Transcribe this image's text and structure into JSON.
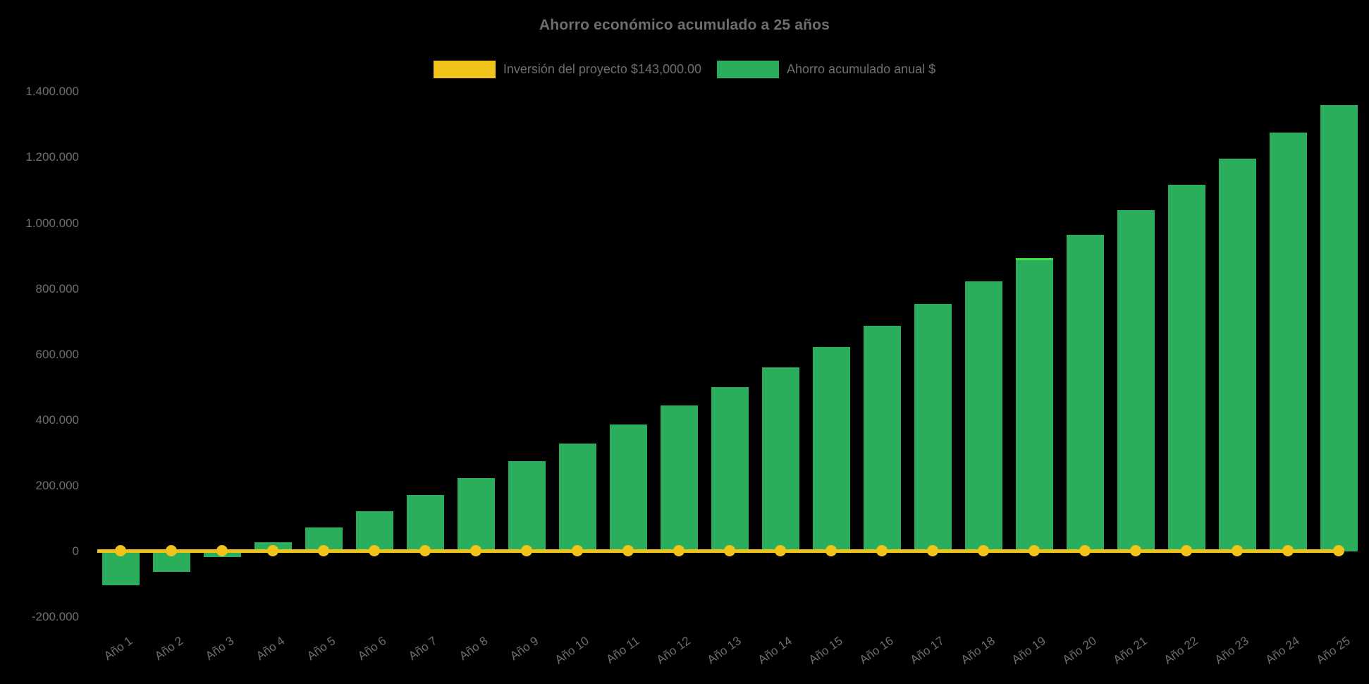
{
  "title": "Ahorro económico acumulado a 25 años",
  "colors": {
    "background": "#000000",
    "bar_green": "#2BAE5C",
    "line_yellow": "#F1C319",
    "text_gray": "#6E6E6E",
    "highlight_green": "#3FE03F"
  },
  "legend": {
    "items": [
      {
        "label": "Inversión del proyecto $143,000.00",
        "color": "#F1C319",
        "series_type": "line"
      },
      {
        "label": "Ahorro acumulado anual $",
        "color": "#2BAE5C",
        "series_type": "bar"
      }
    ]
  },
  "chart_data": {
    "type": "bar",
    "title": "Ahorro económico acumulado a 25 años",
    "categories": [
      "Año 1",
      "Año 2",
      "Año 3",
      "Año 4",
      "Año 5",
      "Año 6",
      "Año 7",
      "Año 8",
      "Año 9",
      "Año 10",
      "Año 11",
      "Año 12",
      "Año 13",
      "Año 14",
      "Año 15",
      "Año 16",
      "Año 17",
      "Año 18",
      "Año 19",
      "Año 20",
      "Año 21",
      "Año 22",
      "Año 23",
      "Año 24",
      "Año 25"
    ],
    "series": [
      {
        "name": "Inversión del proyecto $143,000.00",
        "type": "line",
        "color": "#F1C319",
        "values": [
          0,
          0,
          0,
          0,
          0,
          0,
          0,
          0,
          0,
          0,
          0,
          0,
          0,
          0,
          0,
          0,
          0,
          0,
          0,
          0,
          0,
          0,
          0,
          0,
          0
        ]
      },
      {
        "name": "Ahorro acumulado anual $",
        "type": "bar",
        "color": "#2BAE5C",
        "values": [
          -103000,
          -62000,
          -16500,
          28000,
          73000,
          122000,
          171000,
          224000,
          275000,
          329500,
          386000,
          444500,
          501000,
          561500,
          622000,
          686500,
          754500,
          823500,
          894000,
          964500,
          1040000,
          1117000,
          1195500,
          1276500,
          1360000
        ]
      }
    ],
    "investment_reference": 143000,
    "ylim": [
      -200000,
      1400000
    ],
    "ytick_step": 200000,
    "ytick_labels": [
      "1.400.000",
      "1.200.000",
      "1.000.000",
      "800.000",
      "600.000",
      "400.000",
      "200.000",
      "0",
      "-200.000"
    ],
    "xlabel": "",
    "ylabel": "",
    "grid": false,
    "legend_position": "top",
    "highlight": {
      "category_index": 18,
      "edge": "top",
      "edge_color": "#3FE03F"
    }
  }
}
